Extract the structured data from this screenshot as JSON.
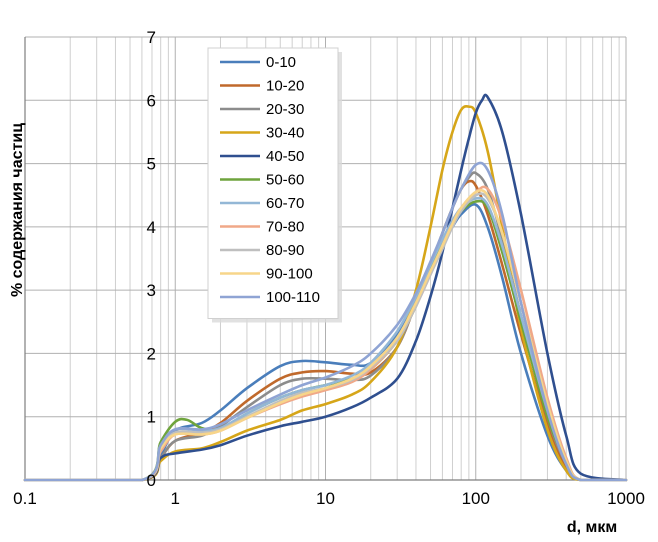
{
  "chart_data": {
    "type": "line",
    "xlabel": "d, мкм",
    "ylabel": "% содержания частиц",
    "xscale": "log",
    "xlim": [
      0.1,
      1000
    ],
    "ylim": [
      0,
      7
    ],
    "x_ticks": [
      "0.1",
      "1",
      "10",
      "100",
      "1000"
    ],
    "y_ticks": [
      "0",
      "1",
      "2",
      "3",
      "4",
      "5",
      "6",
      "7"
    ],
    "grid": true,
    "legend_position": "top-left-inside",
    "series": [
      {
        "name": "0-10",
        "color": "#4a7ebb",
        "x": [
          0.1,
          0.6,
          0.8,
          1,
          1.5,
          2,
          3,
          5,
          7,
          10,
          15,
          20,
          30,
          40,
          50,
          60,
          70,
          80,
          100,
          120,
          150,
          200,
          300,
          400,
          500,
          1000
        ],
        "y": [
          0,
          0,
          0.4,
          0.78,
          0.9,
          1.1,
          1.45,
          1.8,
          1.88,
          1.86,
          1.82,
          1.85,
          2.3,
          2.9,
          3.4,
          3.75,
          4.0,
          4.2,
          4.35,
          4.0,
          3.2,
          2.0,
          0.7,
          0.15,
          0,
          0
        ]
      },
      {
        "name": "10-20",
        "color": "#c0692b",
        "x": [
          0.1,
          0.6,
          0.8,
          1,
          1.5,
          2,
          3,
          5,
          7,
          10,
          15,
          20,
          30,
          40,
          50,
          60,
          70,
          80,
          90,
          100,
          120,
          150,
          200,
          300,
          400,
          500,
          1000
        ],
        "y": [
          0,
          0,
          0.35,
          0.62,
          0.75,
          0.9,
          1.25,
          1.6,
          1.7,
          1.72,
          1.68,
          1.7,
          2.1,
          2.8,
          3.4,
          3.9,
          4.3,
          4.6,
          4.72,
          4.65,
          4.2,
          3.4,
          2.3,
          0.9,
          0.2,
          0,
          0
        ]
      },
      {
        "name": "20-30",
        "color": "#8c8c8c",
        "x": [
          0.1,
          0.6,
          0.8,
          1,
          1.5,
          2,
          3,
          5,
          7,
          10,
          15,
          20,
          30,
          40,
          50,
          60,
          70,
          80,
          90,
          100,
          120,
          150,
          200,
          300,
          400,
          500,
          1000
        ],
        "y": [
          0,
          0,
          0.35,
          0.62,
          0.7,
          0.85,
          1.15,
          1.5,
          1.6,
          1.6,
          1.58,
          1.65,
          2.1,
          2.8,
          3.4,
          3.9,
          4.3,
          4.6,
          4.78,
          4.85,
          4.6,
          3.8,
          2.6,
          1.0,
          0.25,
          0,
          0
        ]
      },
      {
        "name": "30-40",
        "color": "#d6a619",
        "x": [
          0.1,
          0.6,
          0.8,
          1,
          1.5,
          2,
          3,
          5,
          7,
          10,
          15,
          20,
          30,
          40,
          50,
          60,
          70,
          80,
          90,
          100,
          120,
          150,
          200,
          300,
          400,
          500,
          1000
        ],
        "y": [
          0,
          0,
          0.3,
          0.45,
          0.5,
          0.6,
          0.78,
          0.95,
          1.1,
          1.2,
          1.35,
          1.55,
          2.1,
          3.0,
          4.0,
          4.9,
          5.5,
          5.85,
          5.9,
          5.8,
          5.2,
          4.0,
          2.4,
          0.8,
          0.15,
          0,
          0
        ]
      },
      {
        "name": "40-50",
        "color": "#2f4f8f",
        "x": [
          0.1,
          0.6,
          0.8,
          1,
          1.5,
          2,
          3,
          5,
          7,
          10,
          15,
          20,
          30,
          40,
          50,
          60,
          70,
          80,
          90,
          100,
          110,
          120,
          150,
          200,
          300,
          400,
          500,
          1000
        ],
        "y": [
          0,
          0,
          0.35,
          0.42,
          0.48,
          0.55,
          0.7,
          0.85,
          0.92,
          1.0,
          1.15,
          1.3,
          1.6,
          2.2,
          2.9,
          3.6,
          4.3,
          4.9,
          5.4,
          5.8,
          6.0,
          6.05,
          5.5,
          4.2,
          2.0,
          0.7,
          0.1,
          0
        ]
      },
      {
        "name": "50-60",
        "color": "#6fa43d",
        "x": [
          0.1,
          0.6,
          0.8,
          1,
          1.2,
          1.5,
          2,
          3,
          5,
          7,
          10,
          15,
          20,
          30,
          40,
          50,
          60,
          70,
          80,
          100,
          120,
          150,
          200,
          300,
          400,
          500,
          1000
        ],
        "y": [
          0,
          0,
          0.6,
          0.92,
          0.95,
          0.82,
          0.8,
          1.05,
          1.3,
          1.42,
          1.5,
          1.6,
          1.75,
          2.2,
          2.75,
          3.3,
          3.75,
          4.05,
          4.25,
          4.4,
          4.3,
          3.6,
          2.5,
          1.0,
          0.3,
          0,
          0
        ]
      },
      {
        "name": "60-70",
        "color": "#93b7d6",
        "x": [
          0.1,
          0.6,
          0.8,
          1,
          1.5,
          2,
          3,
          5,
          7,
          10,
          15,
          20,
          30,
          40,
          50,
          60,
          70,
          80,
          100,
          120,
          150,
          200,
          300,
          400,
          500,
          1000
        ],
        "y": [
          0,
          0,
          0.55,
          0.8,
          0.78,
          0.82,
          1.05,
          1.3,
          1.42,
          1.5,
          1.65,
          1.85,
          2.35,
          2.9,
          3.4,
          3.8,
          4.1,
          4.3,
          4.45,
          4.35,
          3.7,
          2.6,
          1.1,
          0.3,
          0,
          0
        ]
      },
      {
        "name": "70-80",
        "color": "#f0a888",
        "x": [
          0.1,
          0.6,
          0.8,
          1,
          1.5,
          2,
          3,
          5,
          7,
          10,
          15,
          20,
          30,
          40,
          50,
          60,
          70,
          80,
          100,
          120,
          150,
          200,
          300,
          400,
          500,
          1000
        ],
        "y": [
          0,
          0,
          0.45,
          0.72,
          0.72,
          0.78,
          0.98,
          1.2,
          1.32,
          1.42,
          1.55,
          1.75,
          2.2,
          2.75,
          3.25,
          3.7,
          4.05,
          4.3,
          4.55,
          4.6,
          4.1,
          3.0,
          1.3,
          0.35,
          0,
          0
        ]
      },
      {
        "name": "80-90",
        "color": "#bfbfbf",
        "x": [
          0.1,
          0.6,
          0.8,
          1,
          1.5,
          2,
          3,
          5,
          7,
          10,
          15,
          20,
          30,
          40,
          50,
          60,
          70,
          80,
          100,
          120,
          150,
          200,
          300,
          400,
          500,
          1000
        ],
        "y": [
          0,
          0,
          0.5,
          0.75,
          0.75,
          0.8,
          1.0,
          1.25,
          1.38,
          1.45,
          1.58,
          1.78,
          2.2,
          2.75,
          3.25,
          3.65,
          4.0,
          4.25,
          4.5,
          4.45,
          3.9,
          2.8,
          1.2,
          0.3,
          0,
          0
        ]
      },
      {
        "name": "90-100",
        "color": "#f7d58a",
        "x": [
          0.1,
          0.6,
          0.8,
          1,
          1.5,
          2,
          3,
          5,
          7,
          10,
          15,
          20,
          30,
          40,
          50,
          60,
          70,
          80,
          100,
          120,
          150,
          200,
          300,
          400,
          500,
          1000
        ],
        "y": [
          0,
          0,
          0.5,
          0.72,
          0.72,
          0.78,
          0.98,
          1.22,
          1.35,
          1.45,
          1.6,
          1.8,
          2.25,
          2.8,
          3.3,
          3.7,
          4.05,
          4.3,
          4.55,
          4.5,
          3.9,
          2.8,
          1.2,
          0.3,
          0,
          0
        ]
      },
      {
        "name": "100-110",
        "color": "#8fa4d4",
        "x": [
          0.1,
          0.6,
          0.8,
          1,
          1.5,
          2,
          3,
          5,
          7,
          10,
          15,
          20,
          30,
          40,
          50,
          60,
          70,
          80,
          100,
          120,
          150,
          200,
          300,
          400,
          500,
          1000
        ],
        "y": [
          0,
          0,
          0.55,
          0.8,
          0.8,
          0.88,
          1.1,
          1.35,
          1.5,
          1.62,
          1.8,
          2.0,
          2.45,
          2.95,
          3.45,
          3.9,
          4.3,
          4.6,
          4.98,
          4.9,
          4.2,
          2.8,
          1.1,
          0.25,
          0,
          0
        ]
      }
    ]
  }
}
